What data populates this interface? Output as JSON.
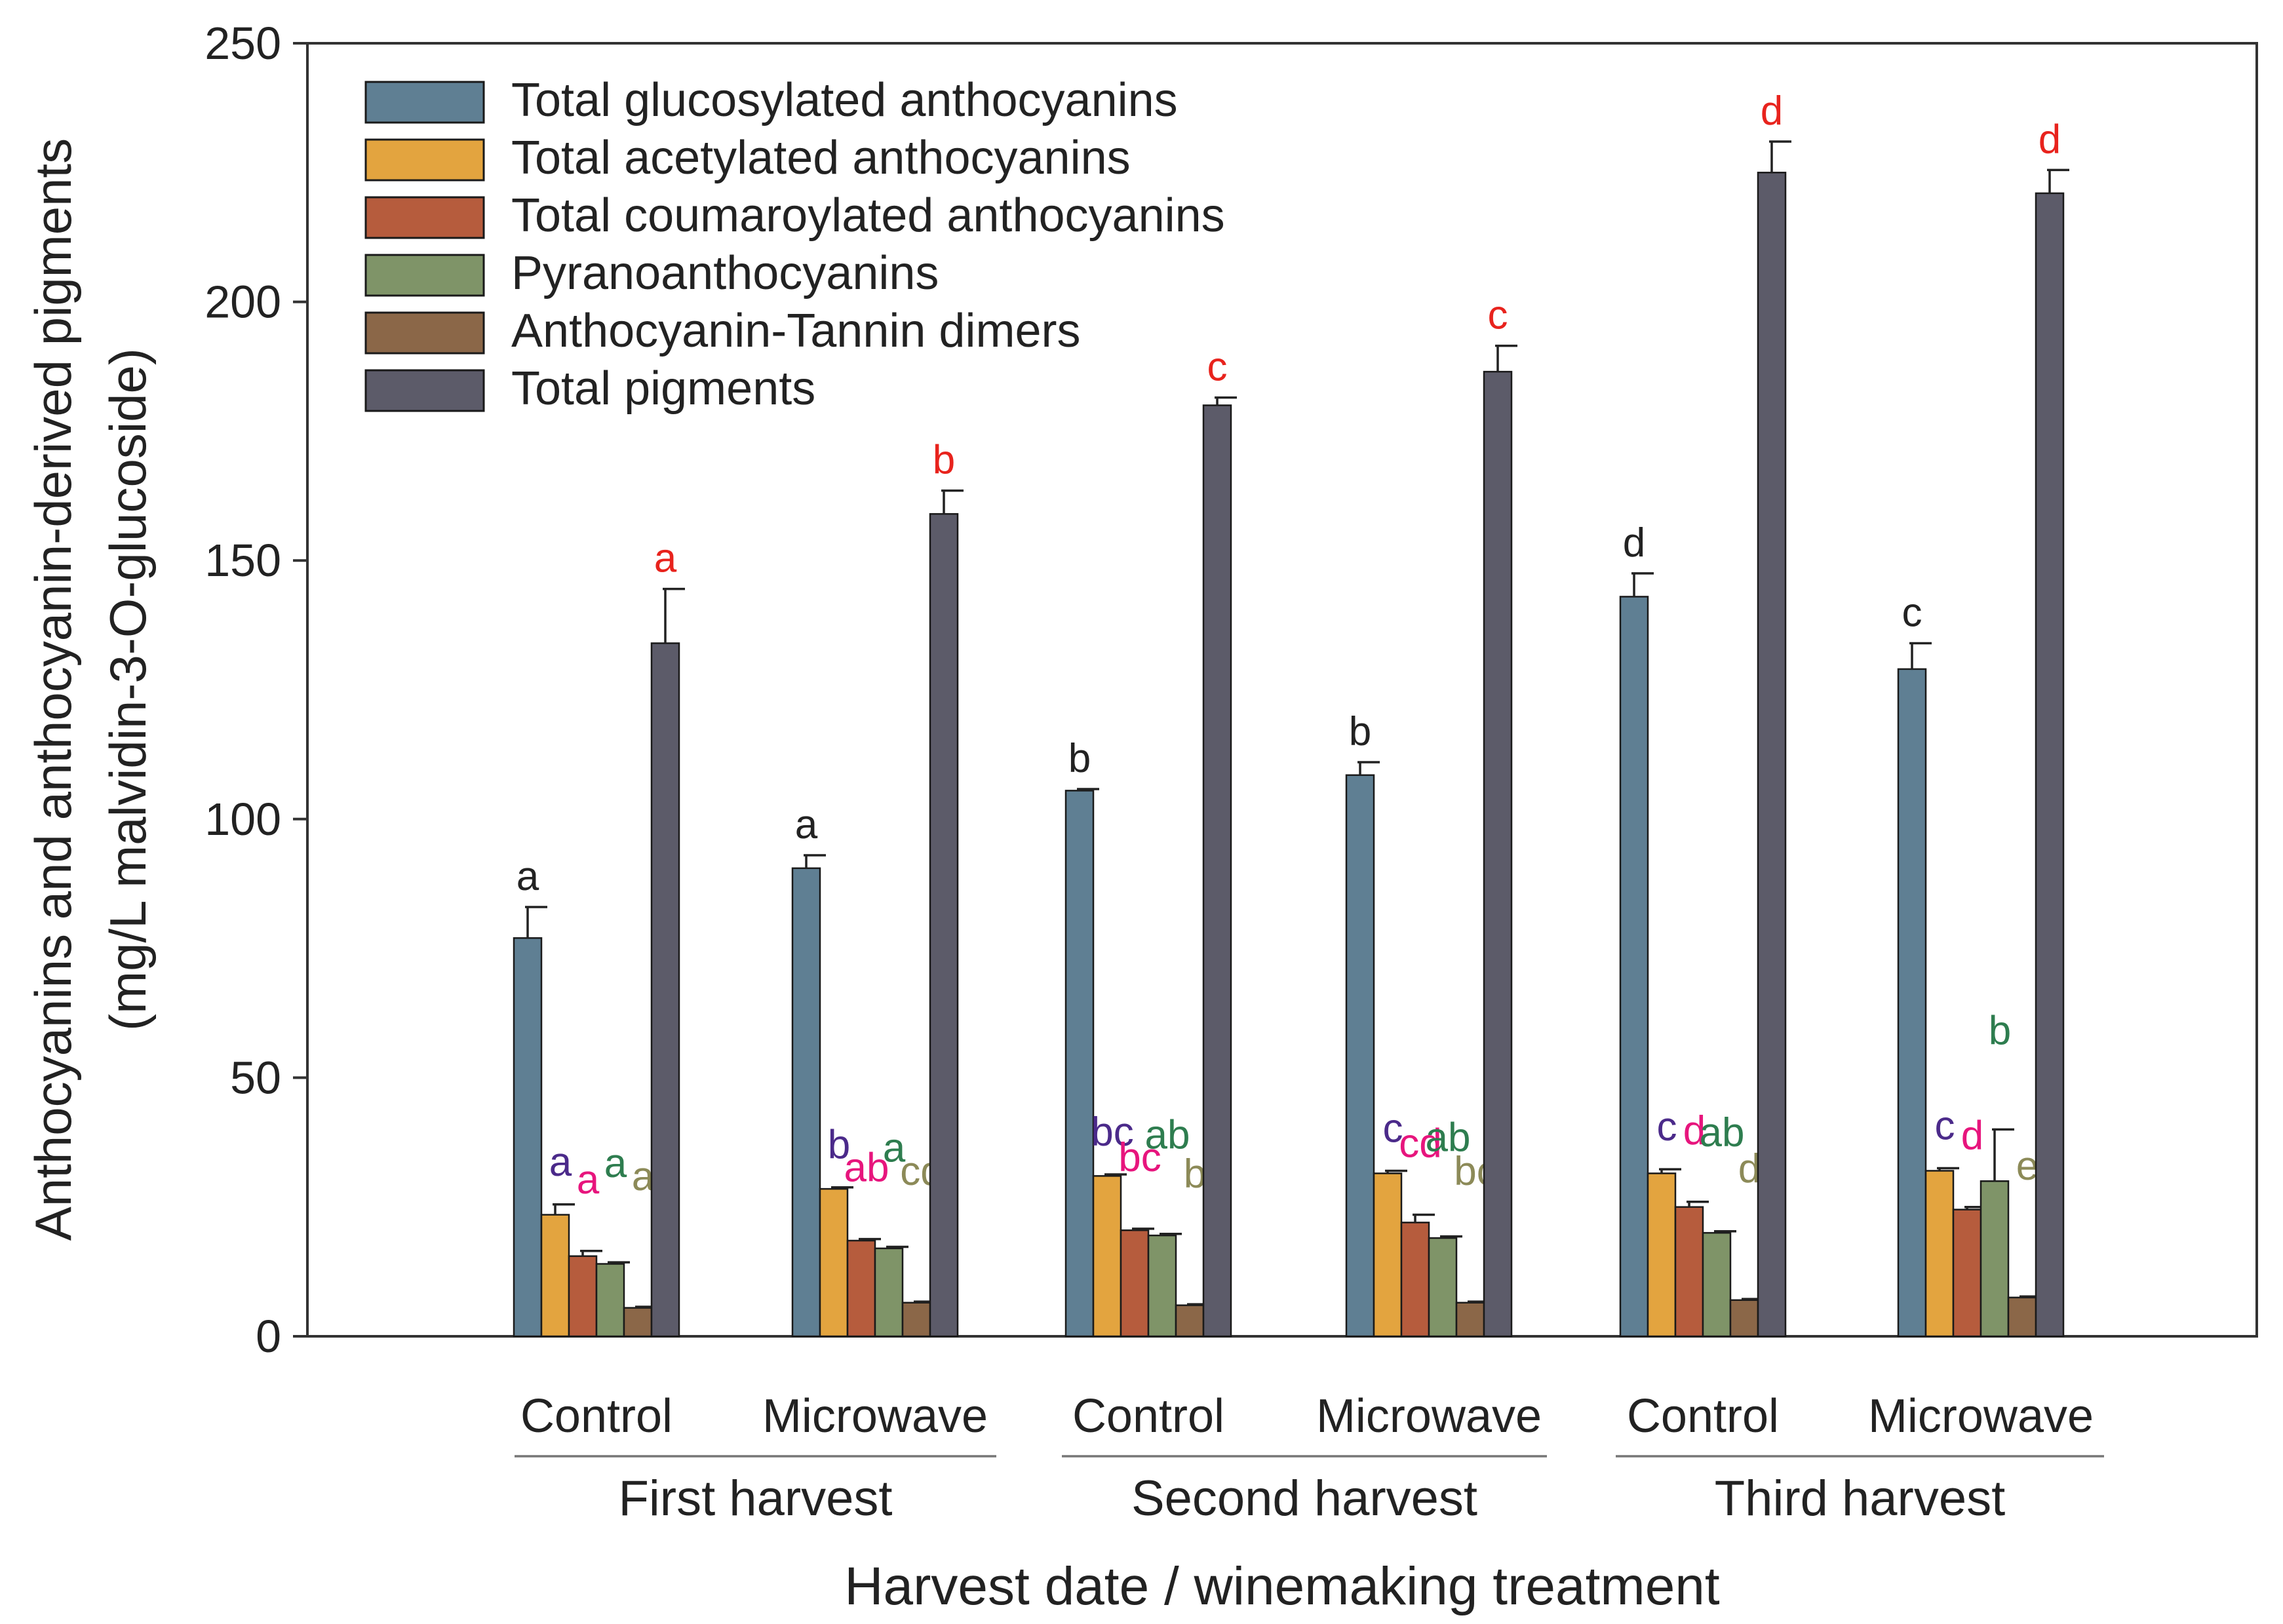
{
  "chart_data": {
    "type": "bar",
    "title": "",
    "xlabel": "Harvest date / winemaking treatment",
    "ylabel_line1": "Anthocyanins and anthocyanin-derived pigments",
    "ylabel_line2": "(mg/L malvidin-3-O-glucoside)",
    "ylim": [
      0,
      250
    ],
    "yticks": [
      "0",
      "50",
      "100",
      "150",
      "200",
      "250"
    ],
    "grid": false,
    "legend_position": "top-left",
    "categories": [
      "Control",
      "Microwave",
      "Control",
      "Microwave",
      "Control",
      "Microwave"
    ],
    "groups": [
      {
        "label": "First harvest"
      },
      {
        "label": "Second harvest"
      },
      {
        "label": "Third harvest"
      }
    ],
    "series": [
      {
        "name": "Total glucosylated anthocyanins",
        "color": "#5f7f93",
        "letter_color": "#222222",
        "values": [
          77,
          90.5,
          105.5,
          108.5,
          143,
          129
        ],
        "errors": [
          6,
          2.5,
          0.3,
          2.5,
          4.5,
          5
        ],
        "letters": [
          "a",
          "a",
          "b",
          "b",
          "d",
          "c"
        ]
      },
      {
        "name": "Total acetylated anthocyanins",
        "color": "#e3a43f",
        "letter_color": "#4b2a8a",
        "values": [
          23.5,
          28.5,
          31,
          31.5,
          31.5,
          32
        ],
        "errors": [
          2,
          0.3,
          0.3,
          0.5,
          0.8,
          0.5
        ],
        "letters": [
          "a",
          "b",
          "bc",
          "c",
          "c",
          "c"
        ]
      },
      {
        "name": "Total coumaroylated anthocyanins",
        "color": "#b65c3d",
        "letter_color": "#e7157d",
        "values": [
          15.5,
          18.5,
          20.5,
          22,
          25,
          24.5
        ],
        "errors": [
          1,
          0.3,
          0.3,
          1.5,
          1,
          0.5
        ],
        "letters": [
          "a",
          "ab",
          "bc",
          "cd",
          "d",
          "d"
        ]
      },
      {
        "name": "Pyranoanthocyanins",
        "color": "#7f9468",
        "letter_color": "#2e7d4f",
        "values": [
          14,
          17,
          19.5,
          19,
          20,
          30
        ],
        "errors": [
          0.3,
          0.3,
          0.3,
          0.3,
          0.3,
          10
        ],
        "letters": [
          "a",
          "a",
          "ab",
          "ab",
          "ab",
          "b"
        ]
      },
      {
        "name": "Anthocyanin-Tannin dimers",
        "color": "#8b6748",
        "letter_color": "#8c8a58",
        "values": [
          5.5,
          6.5,
          6,
          6.5,
          7,
          7.5
        ],
        "errors": [
          0.2,
          0.2,
          0.2,
          0.2,
          0.2,
          0.2
        ],
        "letters": [
          "a",
          "cd",
          "b",
          "bc",
          "d",
          "e"
        ]
      },
      {
        "name": "Total pigments",
        "color": "#5c5b69",
        "letter_color": "#e8231d",
        "values": [
          134,
          159,
          180,
          186.5,
          225,
          221
        ],
        "errors": [
          10.5,
          4.5,
          1.5,
          5,
          6,
          4.5
        ],
        "letters": [
          "a",
          "b",
          "c",
          "c",
          "d",
          "d"
        ]
      }
    ]
  }
}
